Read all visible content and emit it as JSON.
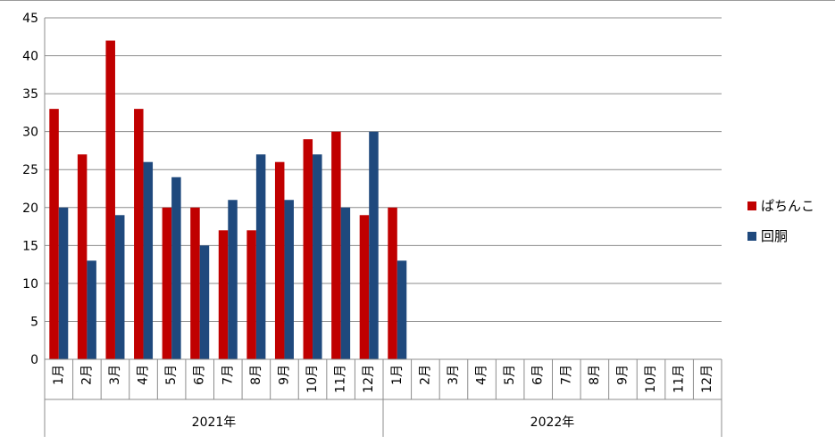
{
  "chart_data": {
    "type": "bar",
    "ylim": [
      0,
      45
    ],
    "y_ticks": [
      "0",
      "5",
      "10",
      "15",
      "20",
      "25",
      "30",
      "35",
      "40",
      "45"
    ],
    "grid": true,
    "legend_position": "right",
    "categories": [
      "1月",
      "2月",
      "3月",
      "4月",
      "5月",
      "6月",
      "7月",
      "8月",
      "9月",
      "10月",
      "11月",
      "12月",
      "1月",
      "2月",
      "3月",
      "4月",
      "5月",
      "6月",
      "7月",
      "8月",
      "9月",
      "10月",
      "11月",
      "12月"
    ],
    "groups": [
      {
        "label": "2021年",
        "count": 12
      },
      {
        "label": "2022年",
        "count": 12
      }
    ],
    "series": [
      {
        "name": "ぱちんこ",
        "color": "#C00000",
        "values": [
          33,
          27,
          42,
          33,
          20,
          20,
          17,
          17,
          26,
          29,
          30,
          19,
          20,
          null,
          null,
          null,
          null,
          null,
          null,
          null,
          null,
          null,
          null,
          null
        ]
      },
      {
        "name": "回胴",
        "color": "#1F497D",
        "values": [
          20,
          13,
          19,
          26,
          24,
          15,
          21,
          27,
          21,
          27,
          20,
          30,
          13,
          null,
          null,
          null,
          null,
          null,
          null,
          null,
          null,
          null,
          null,
          null
        ]
      }
    ]
  }
}
